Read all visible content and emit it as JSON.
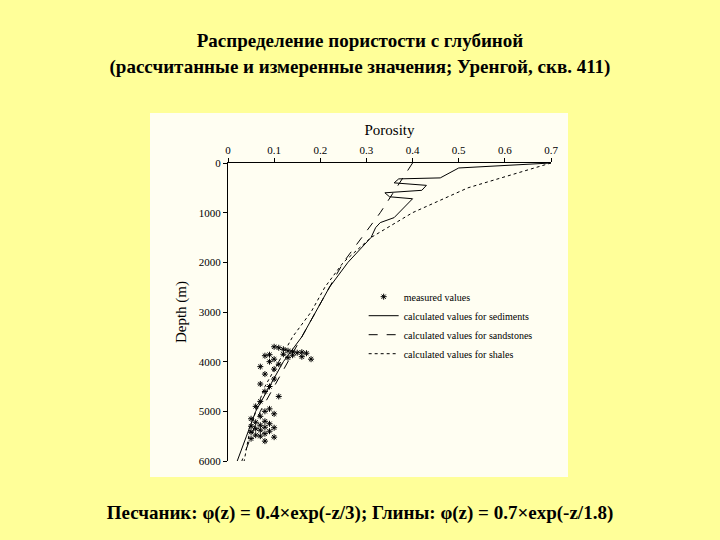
{
  "chart_data": {
    "type": "scatter",
    "title": "Распределение пористости с глубиной",
    "subtitle": "(рассчитанные и измеренные значения; Уренгой, скв. 411)",
    "annotations": [
      "Песчаник: φ(z) = 0.4×exp(-z/3); Глины: φ(z) = 0.7×exp(-z/1.8)"
    ],
    "x_label": "Porosity",
    "y_label": "Depth (m)",
    "xlim": [
      0,
      0.7
    ],
    "xticks": [
      0,
      0.1,
      0.2,
      0.3,
      0.4,
      0.5,
      0.6,
      0.7
    ],
    "ylim": [
      6000,
      0
    ],
    "yticks": [
      0,
      1000,
      2000,
      3000,
      4000,
      5000,
      6000
    ],
    "grid": false,
    "legend": "right",
    "series": [
      {
        "name": "measured values",
        "color": "#000000",
        "type": "scatter",
        "marker": "asterisk",
        "x": [
          0.1,
          0.11,
          0.12,
          0.13,
          0.14,
          0.15,
          0.16,
          0.17,
          0.12,
          0.09,
          0.08,
          0.14,
          0.16,
          0.18,
          0.13,
          0.1,
          0.09,
          0.11,
          0.07,
          0.1,
          0.08,
          0.1,
          0.07,
          0.09,
          0.08,
          0.11,
          0.07,
          0.06,
          0.09,
          0.08,
          0.1,
          0.07,
          0.05,
          0.08,
          0.06,
          0.09,
          0.07,
          0.05,
          0.08,
          0.1,
          0.06,
          0.07,
          0.09,
          0.05,
          0.08,
          0.06,
          0.07,
          0.1,
          0.05,
          0.08
        ],
        "values": [
          3700,
          3720,
          3750,
          3780,
          3800,
          3820,
          3810,
          3830,
          3850,
          3860,
          3880,
          3870,
          3900,
          3950,
          3920,
          3950,
          4000,
          4050,
          4100,
          4150,
          4250,
          4350,
          4450,
          4500,
          4600,
          4700,
          4800,
          4900,
          4950,
          5000,
          5050,
          5100,
          5150,
          5200,
          5220,
          5250,
          5280,
          5300,
          5320,
          5330,
          5350,
          5380,
          5400,
          5420,
          5450,
          5480,
          5500,
          5520,
          5550,
          5600
        ]
      },
      {
        "name": "calculated values for sediments",
        "color": "#000000",
        "type": "line",
        "line_style": "solid",
        "x": [
          0.7,
          0.5,
          0.46,
          0.37,
          0.36,
          0.43,
          0.42,
          0.34,
          0.35,
          0.4,
          0.36,
          0.33,
          0.32,
          0.31,
          0.26,
          0.22,
          0.19,
          0.16,
          0.12,
          0.09,
          0.06,
          0.04,
          0.02
        ],
        "values": [
          0,
          100,
          300,
          320,
          400,
          450,
          550,
          600,
          680,
          720,
          1100,
          1200,
          1300,
          1500,
          2000,
          2500,
          3000,
          3500,
          4000,
          4500,
          5000,
          5500,
          6000
        ]
      },
      {
        "name": "calculated values for sandstones",
        "color": "#000000",
        "type": "line",
        "line_style": "dash",
        "x": [
          0.4,
          0.33,
          0.25,
          0.19,
          0.13,
          0.07,
          0.03
        ],
        "values": [
          0,
          1000,
          2000,
          3000,
          4000,
          5000,
          6000
        ]
      },
      {
        "name": "calculated values for shales",
        "color": "#000000",
        "type": "line",
        "line_style": "dot",
        "x": [
          0.7,
          0.52,
          0.4,
          0.31,
          0.25,
          0.21,
          0.18,
          0.14,
          0.11,
          0.08,
          0.06,
          0.045,
          0.035
        ],
        "values": [
          0,
          500,
          1000,
          1500,
          2000,
          2500,
          3000,
          3500,
          4000,
          4500,
          5000,
          5500,
          6000
        ]
      }
    ]
  }
}
